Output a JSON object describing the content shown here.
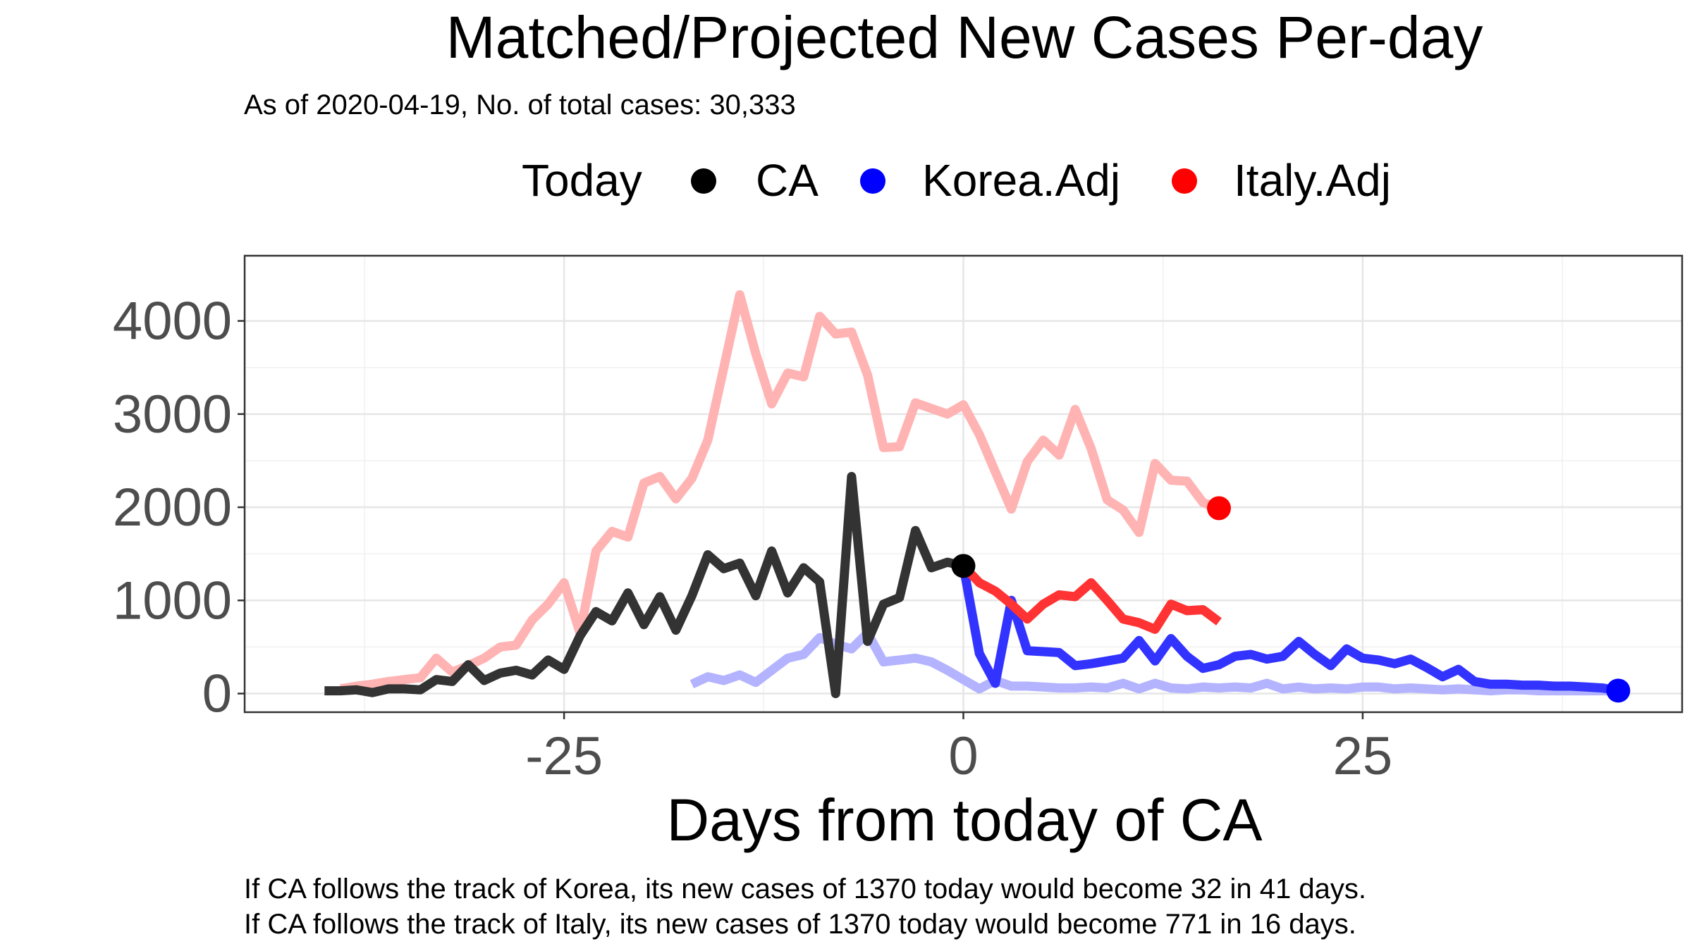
{
  "chart_data": {
    "type": "line",
    "title": "Matched/Projected New Cases Per-day",
    "subtitle": "As of 2020-04-19, No. of total cases: 30,333",
    "xlabel": "Days from today of CA",
    "ylabel": "",
    "xlim": [
      -45,
      45
    ],
    "ylim": [
      -200,
      4700
    ],
    "x_ticks": [
      -25,
      0,
      25
    ],
    "y_ticks": [
      0,
      1000,
      2000,
      3000,
      4000
    ],
    "grid": true,
    "legend": {
      "position": "top",
      "title": "Today",
      "entries": [
        {
          "label": "CA",
          "color": "#000000"
        },
        {
          "label": "Korea.Adj",
          "color": "#0000ff"
        },
        {
          "label": "Italy.Adj",
          "color": "#ff0000"
        }
      ]
    },
    "series": [
      {
        "color": "#ffb3b3",
        "x": [
          -39,
          -38,
          -37,
          -36,
          -35,
          -34,
          -33,
          -32,
          -31,
          -30,
          -29,
          -28,
          -27,
          -26,
          -25,
          -24,
          -23,
          -22,
          -21,
          -20,
          -19,
          -18,
          -17,
          -16,
          -15,
          -14,
          -13,
          -12,
          -11,
          -10,
          -9,
          -8,
          -7,
          -6,
          -5,
          -4,
          -3,
          -2,
          -1,
          0,
          1,
          2,
          3,
          4,
          5,
          6,
          7,
          8,
          9,
          10,
          11,
          12,
          13,
          14,
          15,
          16
        ],
        "y": [
          50,
          80,
          100,
          130,
          150,
          170,
          380,
          230,
          300,
          380,
          500,
          520,
          790,
          960,
          1190,
          650,
          1530,
          1740,
          1680,
          2260,
          2330,
          2090,
          2310,
          2720,
          3500,
          4280,
          3650,
          3110,
          3440,
          3400,
          4050,
          3860,
          3880,
          3420,
          2640,
          2650,
          3120,
          3060,
          3000,
          3100,
          2780,
          2380,
          1980,
          2490,
          2720,
          2560,
          3050,
          2630,
          2080,
          1970,
          1730,
          2470,
          2290,
          2280,
          2050,
          1990
        ]
      },
      {
        "color": "#b3b3ff",
        "x": [
          -17,
          -16,
          -15,
          -14,
          -13,
          -12,
          -11,
          -10,
          -9,
          -8,
          -7,
          -6,
          -5,
          -4,
          -3,
          -2,
          -1,
          0,
          1,
          2,
          3,
          4,
          5,
          6,
          7,
          8,
          9,
          10,
          11,
          12,
          13,
          14,
          15,
          16,
          17,
          18,
          19,
          20,
          21,
          22,
          23,
          24,
          25,
          26,
          27,
          28,
          29,
          30,
          31,
          32,
          33,
          34,
          35,
          36,
          37,
          38,
          39,
          40,
          41
        ],
        "y": [
          100,
          180,
          140,
          200,
          120,
          250,
          380,
          420,
          600,
          530,
          480,
          650,
          340,
          360,
          380,
          340,
          250,
          150,
          50,
          140,
          80,
          80,
          70,
          60,
          60,
          70,
          60,
          110,
          50,
          110,
          60,
          50,
          70,
          60,
          70,
          60,
          110,
          50,
          70,
          50,
          60,
          50,
          70,
          70,
          50,
          60,
          50,
          40,
          50,
          40,
          30,
          40,
          40,
          30,
          30,
          30,
          30,
          30,
          30
        ]
      },
      {
        "color": "#333333",
        "x": [
          -40,
          -39,
          -38,
          -37,
          -36,
          -35,
          -34,
          -33,
          -32,
          -31,
          -30,
          -29,
          -28,
          -27,
          -26,
          -25,
          -24,
          -23,
          -22,
          -21,
          -20,
          -19,
          -18,
          -17,
          -16,
          -15,
          -14,
          -13,
          -12,
          -11,
          -10,
          -9,
          -8,
          -7,
          -6,
          -5,
          -4,
          -3,
          -2,
          -1,
          0
        ],
        "y": [
          30,
          30,
          40,
          10,
          50,
          50,
          40,
          150,
          130,
          310,
          140,
          220,
          250,
          200,
          360,
          260,
          620,
          880,
          780,
          1080,
          740,
          1040,
          680,
          1050,
          1490,
          1340,
          1400,
          1050,
          1530,
          1080,
          1350,
          1200,
          0,
          2330,
          560,
          960,
          1030,
          1750,
          1350,
          1410,
          1370
        ]
      },
      {
        "color": "#3333ff",
        "x": [
          0,
          1,
          2,
          3,
          4,
          5,
          6,
          7,
          8,
          9,
          10,
          11,
          12,
          13,
          14,
          15,
          16,
          17,
          18,
          19,
          20,
          21,
          22,
          23,
          24,
          25,
          26,
          27,
          28,
          29,
          30,
          31,
          32,
          33,
          34,
          35,
          36,
          37,
          38,
          39,
          40,
          41
        ],
        "y": [
          1370,
          430,
          110,
          1000,
          460,
          450,
          440,
          300,
          320,
          350,
          380,
          570,
          350,
          590,
          400,
          270,
          310,
          400,
          420,
          370,
          400,
          560,
          420,
          300,
          480,
          380,
          360,
          320,
          370,
          280,
          180,
          260,
          130,
          100,
          100,
          90,
          90,
          80,
          80,
          70,
          60,
          32
        ]
      },
      {
        "color": "#ff3333",
        "x": [
          0,
          1,
          2,
          3,
          4,
          5,
          6,
          7,
          8,
          9,
          10,
          11,
          12,
          13,
          14,
          15,
          16
        ],
        "y": [
          1370,
          1190,
          1100,
          960,
          800,
          960,
          1060,
          1040,
          1190,
          1000,
          800,
          760,
          690,
          960,
          890,
          900,
          771
        ]
      }
    ],
    "today_points": [
      {
        "x": 0,
        "y": 1370,
        "color": "#000000"
      },
      {
        "x": 41,
        "y": 32,
        "color": "#0000ff"
      },
      {
        "x": 16,
        "y": 1990,
        "color": "#ff0000"
      }
    ],
    "annotations": [
      "If CA follows the track of Korea, its new cases of 1370 today would become 32 in 41 days.",
      "If CA follows the track of Italy, its new cases of 1370 today would become 771 in 16 days."
    ]
  }
}
